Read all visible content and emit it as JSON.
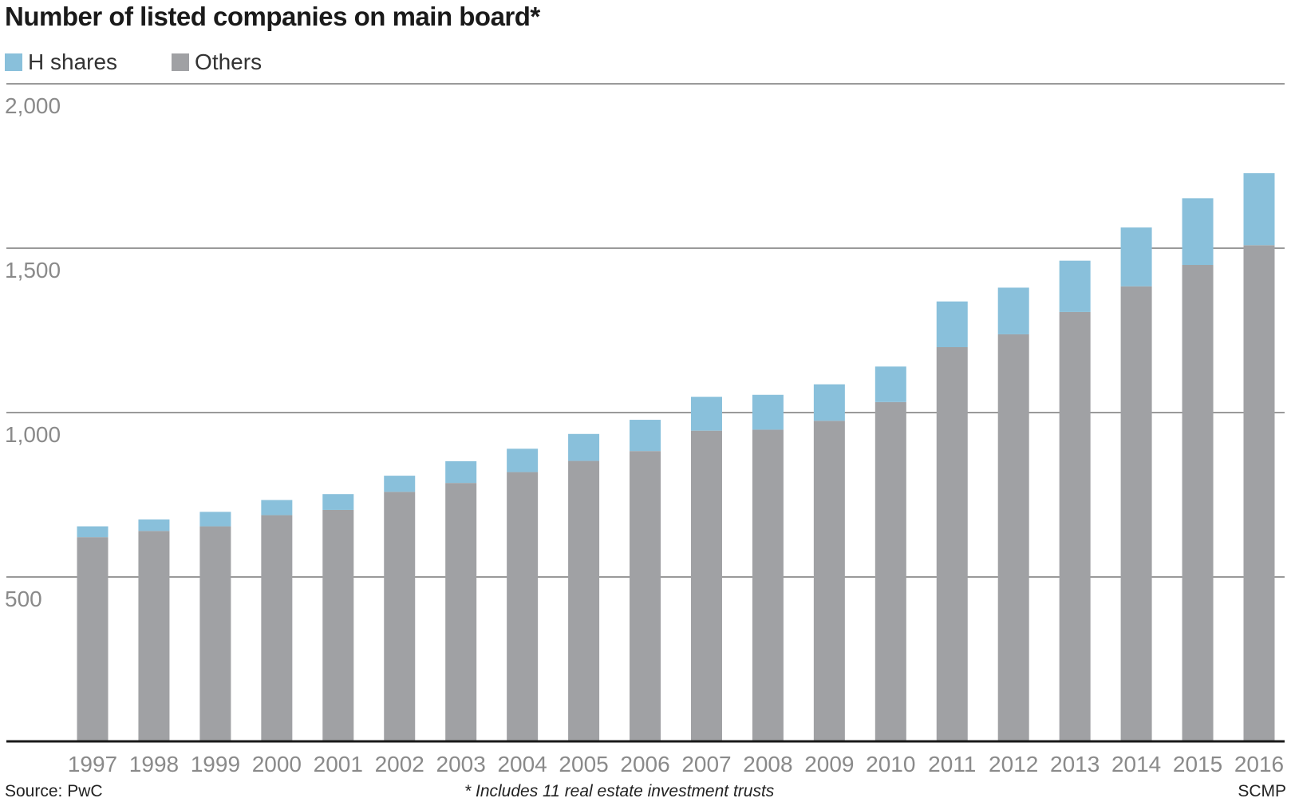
{
  "chart_data": {
    "type": "bar",
    "stacked": true,
    "title": "Number of listed companies on main board*",
    "categories": [
      "1997",
      "1998",
      "1999",
      "2000",
      "2001",
      "2002",
      "2003",
      "2004",
      "2005",
      "2006",
      "2007",
      "2008",
      "2009",
      "2010",
      "2011",
      "2012",
      "2013",
      "2014",
      "2015",
      "2016"
    ],
    "series": [
      {
        "name": "Others",
        "color": "#a0a1a4",
        "values": [
          621,
          640,
          654,
          688,
          704,
          759,
          786,
          819,
          853,
          883,
          945,
          948,
          975,
          1032,
          1199,
          1238,
          1306,
          1384,
          1449,
          1509
        ]
      },
      {
        "name": "H shares",
        "color": "#89c0db",
        "values": [
          33,
          35,
          44,
          46,
          48,
          49,
          66,
          71,
          82,
          95,
          103,
          106,
          111,
          108,
          139,
          142,
          156,
          179,
          203,
          219
        ]
      }
    ],
    "yticks": [
      500,
      1000,
      1500,
      2000
    ],
    "ytick_labels": [
      "500",
      "1,000",
      "1,500",
      "2,000"
    ],
    "ylim": [
      0,
      2000
    ],
    "xlabel": "",
    "ylabel": "",
    "grid": true,
    "legend": "top-left"
  },
  "footer": {
    "source": "Source: PwC",
    "note": "* Includes 11 real estate investment trusts",
    "credit": "SCMP"
  }
}
